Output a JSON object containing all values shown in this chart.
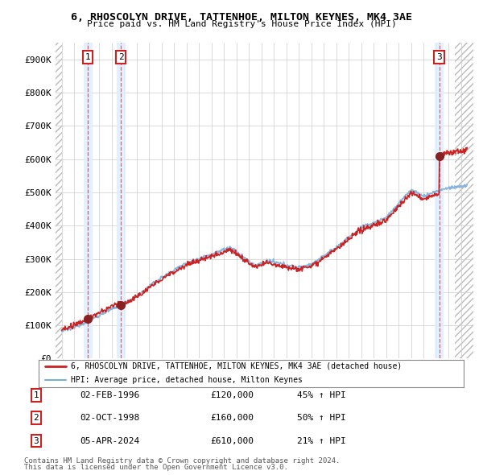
{
  "title_line1": "6, RHOSCOLYN DRIVE, TATTENHOE, MILTON KEYNES, MK4 3AE",
  "title_line2": "Price paid vs. HM Land Registry's House Price Index (HPI)",
  "ylim": [
    0,
    950000
  ],
  "yticks": [
    0,
    100000,
    200000,
    300000,
    400000,
    500000,
    600000,
    700000,
    800000,
    900000
  ],
  "ytick_labels": [
    "£0",
    "£100K",
    "£200K",
    "£300K",
    "£400K",
    "£500K",
    "£600K",
    "£700K",
    "£800K",
    "£900K"
  ],
  "hpi_color": "#7aaddc",
  "price_color": "#cc2222",
  "purchases": [
    {
      "label": "1",
      "date_str": "02-FEB-1996",
      "year": 1996.09,
      "price": 120000,
      "pct": "45%",
      "direction": "↑"
    },
    {
      "label": "2",
      "date_str": "02-OCT-1998",
      "year": 1998.75,
      "price": 160000,
      "pct": "50%",
      "direction": "↑"
    },
    {
      "label": "3",
      "date_str": "05-APR-2024",
      "year": 2024.26,
      "price": 610000,
      "pct": "21%",
      "direction": "↑"
    }
  ],
  "legend_entries": [
    {
      "label": "6, RHOSCOLYN DRIVE, TATTENHOE, MILTON KEYNES, MK4 3AE (detached house)",
      "color": "#cc2222",
      "lw": 2.0
    },
    {
      "label": "HPI: Average price, detached house, Milton Keynes",
      "color": "#7aaddc",
      "lw": 1.5
    }
  ],
  "footer_line1": "Contains HM Land Registry data © Crown copyright and database right 2024.",
  "footer_line2": "This data is licensed under the Open Government Licence v3.0.",
  "sale_region_color": "#ddeeff",
  "xlim_start": 1993.5,
  "xlim_end": 2027.0,
  "hatch_left_end": 1994.0,
  "hatch_right_start": 2025.5
}
